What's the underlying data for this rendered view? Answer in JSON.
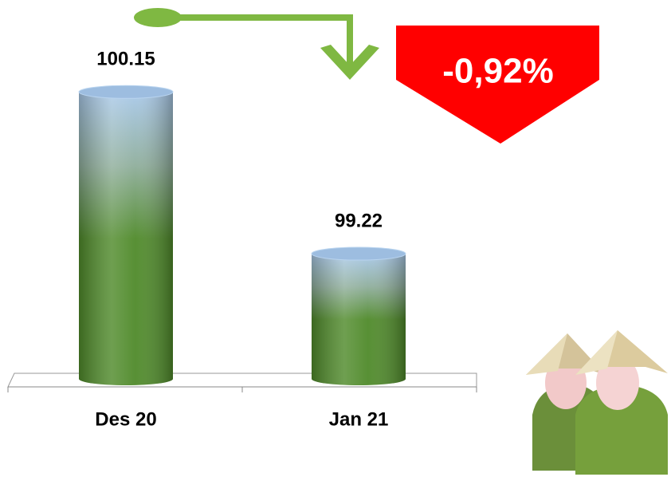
{
  "chart_data": {
    "type": "bar",
    "categories": [
      "Des 20",
      "Jan 21"
    ],
    "values": [
      100.15,
      99.22
    ],
    "color": "#4f8a2a",
    "ylim": [
      98.5,
      100.5
    ],
    "annotation": "-0,92%"
  }
}
